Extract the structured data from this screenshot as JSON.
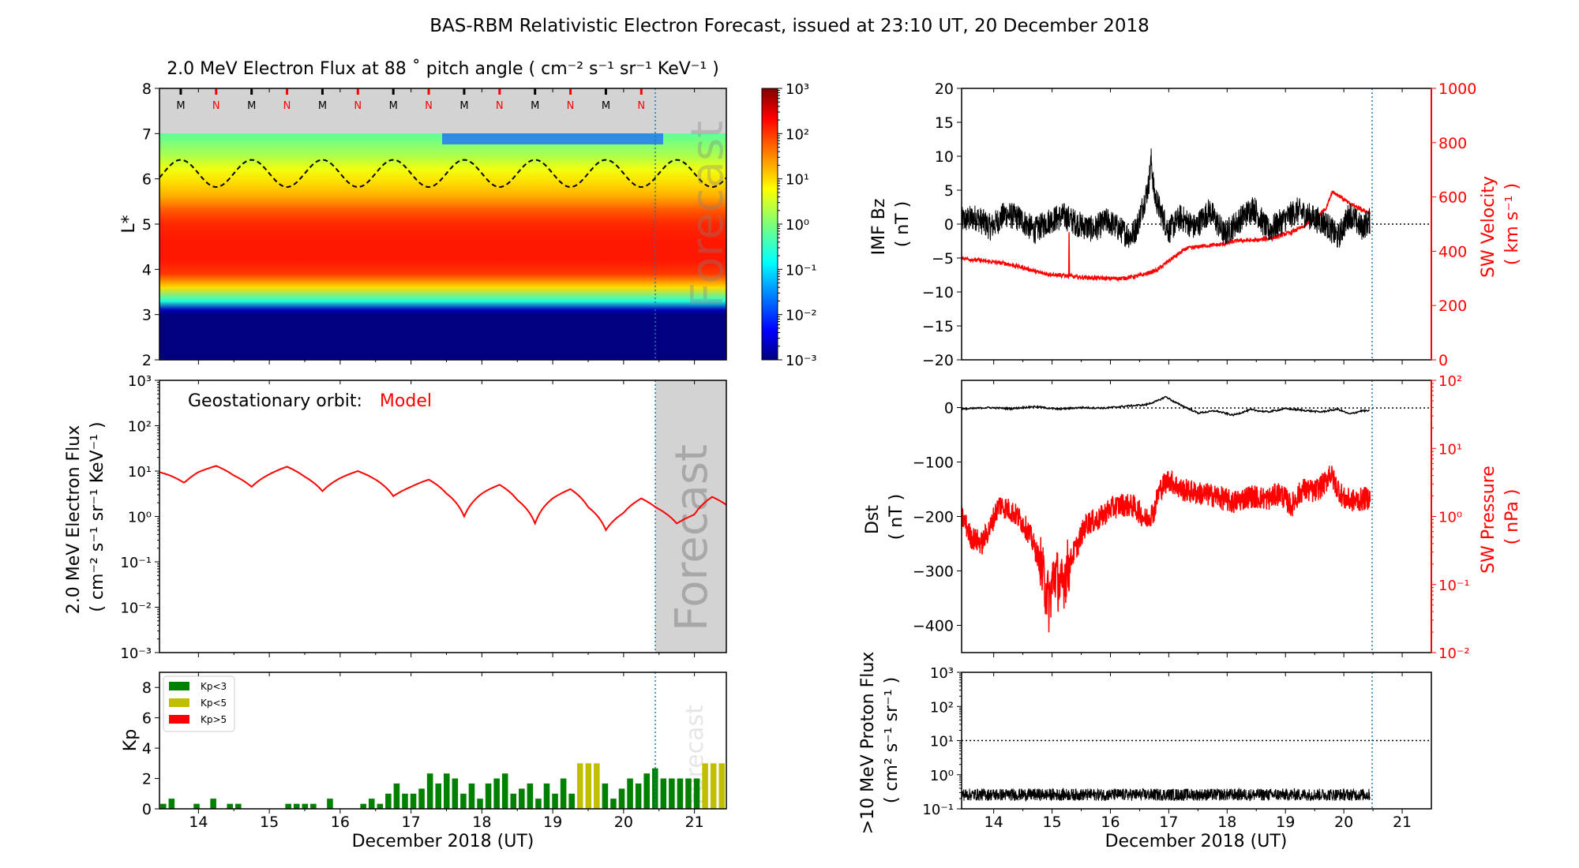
{
  "figure": {
    "title": "BAS-RBM Relativistic Electron Forecast, issued at 23:10 UT, 20 December 2018",
    "xlabel": "December 2018 (UT)",
    "day_ticks": [
      "14",
      "15",
      "16",
      "17",
      "18",
      "19",
      "20",
      "21"
    ],
    "forecast_label": "Forecast"
  },
  "chart_data": [
    {
      "id": "lstar-flux",
      "type": "heatmap",
      "title": "2.0 MeV Electron Flux at 88 ˚ pitch angle ( cm⁻² s⁻¹ sr⁻¹ KeV⁻¹ )",
      "ylabel": "L*",
      "xlim": [
        13.45,
        21.45
      ],
      "ylim": [
        2,
        8
      ],
      "yticks": [
        "2",
        "3",
        "4",
        "5",
        "6",
        "7",
        "8"
      ],
      "forecast_start": 20.45,
      "colorbar": {
        "scale": "log",
        "range": [
          0.001,
          1000
        ],
        "ticks": [
          "10⁻³",
          "10⁻²",
          "10⁻¹",
          "10⁰",
          "10¹",
          "10²",
          "10³"
        ]
      },
      "mlt_markers": {
        "labels": [
          "M",
          "N",
          "M",
          "N",
          "M",
          "N",
          "M",
          "N",
          "M",
          "N",
          "M",
          "N",
          "M",
          "N"
        ],
        "x": [
          13.75,
          14.25,
          14.75,
          15.25,
          15.75,
          16.25,
          16.75,
          17.25,
          17.75,
          18.25,
          18.75,
          19.25,
          19.75,
          20.25
        ]
      },
      "flux_profile": {
        "L": [
          2.0,
          3.0,
          3.1,
          3.3,
          3.6,
          3.9,
          4.2,
          4.6,
          5.0,
          5.3,
          5.6,
          5.9,
          6.2,
          6.5,
          6.8,
          7.0
        ],
        "log_flux": [
          -3,
          -3,
          -2.7,
          -0.6,
          1.0,
          2.0,
          2.2,
          2.2,
          2.1,
          1.8,
          1.3,
          1.0,
          0.7,
          0.3,
          0.0,
          -0.2
        ]
      },
      "geo_orbit_line": {
        "description": "",
        "mean_L": 6.12,
        "amplitude": 0.3
      }
    },
    {
      "id": "geo-flux",
      "type": "line",
      "annotation_prefix": "Geostationary orbit:",
      "series_label": "Model",
      "ylabel": [
        "2.0 MeV Electron Flux",
        "( cm⁻² s⁻¹ sr⁻¹ KeV⁻¹ )"
      ],
      "yscale": "log",
      "ylim": [
        0.001,
        1000
      ],
      "yticks": [
        "10⁻³",
        "10⁻²",
        "10⁻¹",
        "10⁰",
        "10¹",
        "10²",
        "10³"
      ],
      "x": [
        13.45,
        13.6,
        13.8,
        14.0,
        14.25,
        14.5,
        14.75,
        15.0,
        15.25,
        15.5,
        15.75,
        16.0,
        16.25,
        16.5,
        16.75,
        17.0,
        17.25,
        17.5,
        17.75,
        18.0,
        18.25,
        18.5,
        18.75,
        19.0,
        19.25,
        19.5,
        19.75,
        20.0,
        20.25,
        20.45,
        20.75,
        21.0,
        21.25,
        21.45
      ],
      "y": [
        9.5,
        8.0,
        5.5,
        9.5,
        13,
        8.0,
        4.5,
        8.5,
        12.5,
        7.5,
        3.6,
        7.0,
        10,
        6.5,
        2.8,
        4.5,
        6.5,
        3.2,
        1.0,
        3.2,
        5.0,
        2.3,
        0.7,
        2.5,
        4.0,
        1.6,
        0.5,
        1.2,
        2.5,
        1.6,
        0.7,
        1.1,
        2.7,
        1.8
      ]
    },
    {
      "id": "kp",
      "type": "bar",
      "ylabel": "Kp",
      "ylim": [
        0,
        9
      ],
      "yticks": [
        "0",
        "2",
        "4",
        "6",
        "8"
      ],
      "legend": [
        {
          "label": "Kp<3",
          "color": "#008000"
        },
        {
          "label": "Kp<5",
          "color": "#bfbf00"
        },
        {
          "label": "Kp>5",
          "color": "#ff0000"
        }
      ],
      "values": [
        0.33,
        0.67,
        0,
        0,
        0.33,
        0,
        0.67,
        0,
        0.33,
        0.33,
        0,
        0,
        0,
        0,
        0,
        0.33,
        0.33,
        0.33,
        0.33,
        0,
        0.67,
        0,
        0,
        0,
        0.33,
        0.67,
        0.33,
        1.0,
        1.67,
        1.0,
        1.0,
        1.33,
        2.33,
        1.67,
        2.33,
        2.0,
        1.0,
        1.67,
        0.67,
        1.67,
        2.0,
        2.33,
        1.0,
        1.33,
        1.67,
        0.67,
        1.67,
        1.0,
        2.0,
        1.0,
        3.0,
        3.0,
        3.0,
        1.67,
        0.67,
        1.33,
        2.0,
        1.67,
        2.33,
        2.67,
        2.0,
        2.0,
        2.0,
        2.0,
        2.0,
        3.0,
        3.0,
        3.0
      ]
    },
    {
      "id": "imf-sw",
      "type": "line",
      "ylabel_left": [
        "IMF Bz",
        "( nT )"
      ],
      "ylabel_right": [
        "SW Velocity",
        "( km s⁻¹ )"
      ],
      "ylim_left": [
        -20,
        20
      ],
      "yticks_left": [
        "−20",
        "−15",
        "−10",
        "−5",
        "0",
        "5",
        "10",
        "15",
        "20"
      ],
      "ylim_right": [
        0,
        1000
      ],
      "yticks_right": [
        "0",
        "200",
        "400",
        "600",
        "800",
        "1000"
      ],
      "bz_x": [
        13.45,
        13.7,
        13.95,
        14.2,
        14.45,
        14.7,
        14.95,
        15.2,
        15.45,
        15.7,
        15.95,
        16.2,
        16.35,
        16.45,
        16.55,
        16.65,
        16.7,
        16.75,
        16.85,
        17.0,
        17.2,
        17.45,
        17.7,
        17.95,
        18.2,
        18.45,
        18.7,
        18.95,
        19.2,
        19.45,
        19.7,
        19.9,
        20.1,
        20.3,
        20.45
      ],
      "bz_y": [
        0.5,
        1.0,
        -0.5,
        1.5,
        0.8,
        -1.0,
        0.5,
        1.2,
        0.0,
        -0.8,
        0.5,
        -1.0,
        -1.8,
        -0.5,
        2.5,
        5.5,
        9.5,
        4.5,
        2.0,
        -1.0,
        1.0,
        -0.5,
        2.0,
        -1.5,
        0.5,
        2.5,
        -1.0,
        0.5,
        2.0,
        1.0,
        0.0,
        -2.0,
        1.5,
        -0.5,
        0.5
      ],
      "bz_noise": 2.0,
      "vsw_x": [
        13.45,
        13.8,
        14.2,
        14.5,
        14.8,
        15.0,
        15.2,
        15.4,
        15.7,
        16.0,
        16.2,
        16.5,
        16.8,
        17.0,
        17.3,
        17.6,
        17.9,
        18.2,
        18.5,
        18.8,
        19.1,
        19.3,
        19.5,
        19.7,
        19.8,
        19.95,
        20.1,
        20.3,
        20.45
      ],
      "vsw_y": [
        375,
        365,
        355,
        340,
        320,
        315,
        310,
        305,
        302,
        300,
        300,
        310,
        330,
        365,
        410,
        420,
        425,
        440,
        440,
        450,
        470,
        490,
        520,
        560,
        620,
        600,
        575,
        555,
        540
      ]
    },
    {
      "id": "dst-pressure",
      "type": "line",
      "ylabel_left": [
        "Dst",
        "( nT )"
      ],
      "ylabel_right": [
        "SW Pressure",
        "( nPa )"
      ],
      "ylim_left": [
        -450,
        50
      ],
      "yticks_left": [
        "0",
        "−100",
        "−200",
        "−300",
        "−400"
      ],
      "ylim_right": [
        0.01,
        100
      ],
      "yticks_right": [
        "10⁻²",
        "10⁻¹",
        "10⁰",
        "10¹",
        "10²"
      ],
      "dst_x": [
        13.45,
        13.9,
        14.3,
        14.7,
        15.1,
        15.5,
        15.9,
        16.3,
        16.6,
        16.8,
        16.95,
        17.1,
        17.3,
        17.5,
        17.8,
        18.1,
        18.4,
        18.7,
        19.0,
        19.3,
        19.6,
        19.9,
        20.1,
        20.3,
        20.45
      ],
      "dst_y": [
        -3,
        0,
        -2,
        2,
        -3,
        0,
        -1,
        3,
        5,
        12,
        20,
        10,
        0,
        -10,
        -6,
        -14,
        -4,
        -8,
        -2,
        -5,
        -8,
        -3,
        -12,
        -6,
        -6
      ],
      "pdyn_x": [
        13.45,
        13.6,
        13.8,
        13.95,
        14.1,
        14.3,
        14.5,
        14.7,
        14.85,
        14.95,
        15.05,
        15.15,
        15.3,
        15.45,
        15.6,
        15.8,
        16.0,
        16.2,
        16.4,
        16.6,
        16.75,
        16.85,
        17.0,
        17.2,
        17.5,
        17.8,
        18.1,
        18.4,
        18.7,
        18.9,
        19.1,
        19.3,
        19.5,
        19.7,
        19.75,
        19.85,
        20.0,
        20.2,
        20.45
      ],
      "pdyn_y": [
        1.0,
        0.5,
        0.4,
        0.7,
        1.5,
        1.2,
        0.8,
        0.35,
        0.12,
        0.05,
        0.15,
        0.08,
        0.2,
        0.4,
        0.8,
        0.9,
        1.3,
        1.5,
        1.4,
        0.9,
        1.2,
        2.5,
        3.5,
        2.5,
        2.2,
        2.0,
        1.6,
        2.0,
        1.8,
        2.2,
        1.4,
        2.5,
        2.3,
        3.2,
        4.5,
        3.0,
        1.8,
        1.7,
        1.9
      ],
      "pdyn_noise": 0.35
    },
    {
      "id": "proton-flux",
      "type": "line",
      "ylabel": [
        ">10 MeV Proton Flux",
        "( cm² s⁻¹ sr⁻¹ )"
      ],
      "yscale": "log",
      "ylim": [
        0.1,
        1000
      ],
      "yticks": [
        "10⁻¹",
        "10⁰",
        "10¹",
        "10²",
        "10³"
      ],
      "threshold": 10,
      "x": [
        13.45,
        20.45
      ],
      "y_mean": 0.26,
      "noise_dex": 0.18
    }
  ]
}
